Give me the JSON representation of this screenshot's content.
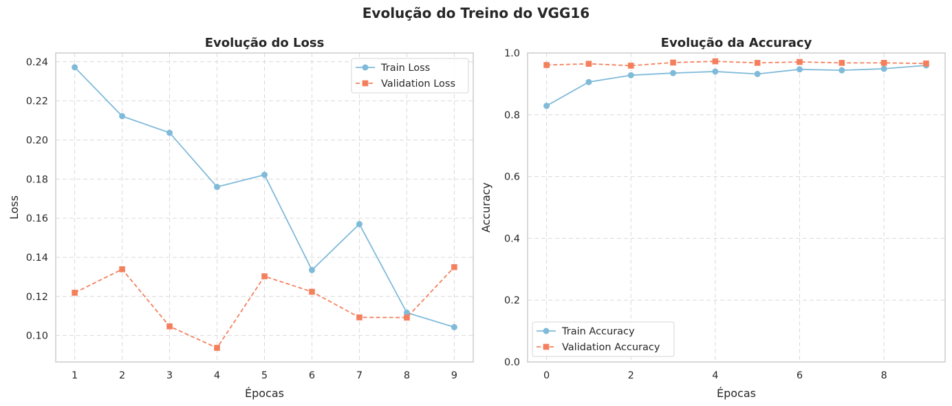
{
  "figure": {
    "title": "Evolução do Treino do VGG16"
  },
  "colors": {
    "train": "#7fbad9",
    "validation": "#f47f5c",
    "grid": "#d9d9d9",
    "axes": "#cccccc"
  },
  "chart_data": [
    {
      "type": "line",
      "title": "Evolução do Loss",
      "xlabel": "Épocas",
      "ylabel": "Loss",
      "x": [
        1,
        2,
        3,
        4,
        5,
        6,
        7,
        8,
        9
      ],
      "xlim": [
        0.6,
        9.4
      ],
      "ylim": [
        0.0865,
        0.2445
      ],
      "xticks": [
        1,
        2,
        3,
        4,
        5,
        6,
        7,
        8,
        9
      ],
      "yticks": [
        0.1,
        0.12,
        0.14,
        0.16,
        0.18,
        0.2,
        0.22,
        0.24
      ],
      "ytick_labels": [
        "0.10",
        "0.12",
        "0.14",
        "0.16",
        "0.18",
        "0.20",
        "0.22",
        "0.24"
      ],
      "grid": true,
      "legend_position": "top-right",
      "series": [
        {
          "name": "Train Loss",
          "style": "solid",
          "marker": "circle",
          "values": [
            0.2372,
            0.2122,
            0.2037,
            0.176,
            0.1822,
            0.1335,
            0.157,
            0.1117,
            0.1043
          ]
        },
        {
          "name": "Validation Loss",
          "style": "dashed",
          "marker": "square",
          "values": [
            0.1219,
            0.1339,
            0.1047,
            0.0937,
            0.1303,
            0.1224,
            0.1093,
            0.1092,
            0.135
          ]
        }
      ]
    },
    {
      "type": "line",
      "title": "Evolução da Accuracy",
      "xlabel": "Épocas",
      "ylabel": "Accuracy",
      "x": [
        0,
        1,
        2,
        3,
        4,
        5,
        6,
        7,
        8,
        9
      ],
      "xlim": [
        -0.45,
        9.45
      ],
      "ylim": [
        0.0,
        1.0
      ],
      "xticks": [
        0,
        2,
        4,
        6,
        8
      ],
      "yticks": [
        0.0,
        0.2,
        0.4,
        0.6,
        0.8,
        1.0
      ],
      "ytick_labels": [
        "0.0",
        "0.2",
        "0.4",
        "0.6",
        "0.8",
        "1.0"
      ],
      "grid": true,
      "legend_position": "bottom-left",
      "series": [
        {
          "name": "Train Accuracy",
          "style": "solid",
          "marker": "circle",
          "values": [
            0.829,
            0.906,
            0.928,
            0.935,
            0.94,
            0.932,
            0.947,
            0.944,
            0.949,
            0.96
          ]
        },
        {
          "name": "Validation Accuracy",
          "style": "dashed",
          "marker": "square",
          "values": [
            0.961,
            0.965,
            0.959,
            0.969,
            0.973,
            0.968,
            0.971,
            0.968,
            0.968,
            0.966
          ]
        }
      ]
    }
  ]
}
